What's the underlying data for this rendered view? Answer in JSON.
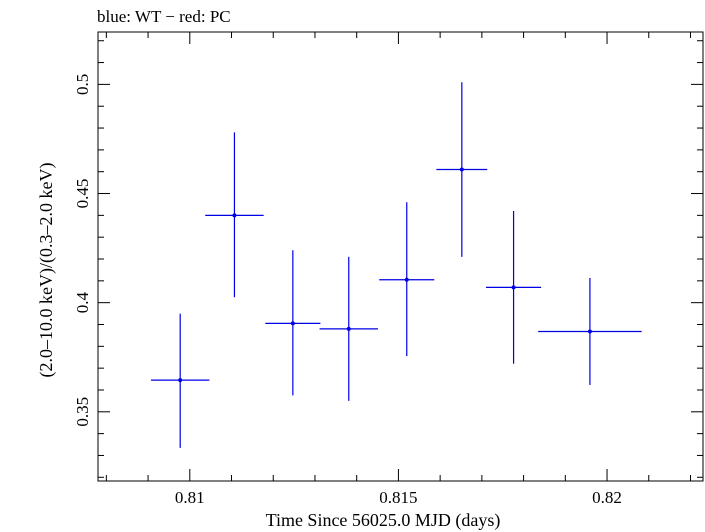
{
  "chart_data": {
    "type": "scatter",
    "subtitle": "blue: WT − red: PC",
    "xlabel": "Time Since 56025.0 MJD (days)",
    "ylabel": "(2.0–10.0 keV)/(0.3–2.0 keV)",
    "xlim": [
      0.8078,
      0.8223
    ],
    "ylim": [
      0.3183,
      0.524
    ],
    "x_ticks": [
      {
        "value": 0.81,
        "label": "0.81"
      },
      {
        "value": 0.815,
        "label": "0.815"
      },
      {
        "value": 0.82,
        "label": "0.82"
      }
    ],
    "y_ticks": [
      {
        "value": 0.35,
        "label": "0.35"
      },
      {
        "value": 0.4,
        "label": "0.4"
      },
      {
        "value": 0.45,
        "label": "0.45"
      },
      {
        "value": 0.5,
        "label": "0.5"
      }
    ],
    "grid": false,
    "color": "#0000e6",
    "series": [
      {
        "x": [
          0.80977,
          0.81107,
          0.81247,
          0.81381,
          0.8152,
          0.81652,
          0.81776,
          0.81959
        ],
        "xerr": [
          0.0007,
          0.0007,
          0.00066,
          0.0007,
          0.00066,
          0.00061,
          0.00066,
          0.00124
        ],
        "y": [
          0.3645,
          0.44,
          0.3905,
          0.388,
          0.4105,
          0.461,
          0.407,
          0.3868
        ],
        "yerr_low": [
          0.031,
          0.0375,
          0.033,
          0.033,
          0.035,
          0.04,
          0.035,
          0.0245
        ],
        "yerr_high": [
          0.0305,
          0.038,
          0.0335,
          0.033,
          0.0355,
          0.04,
          0.035,
          0.0245
        ]
      }
    ]
  }
}
